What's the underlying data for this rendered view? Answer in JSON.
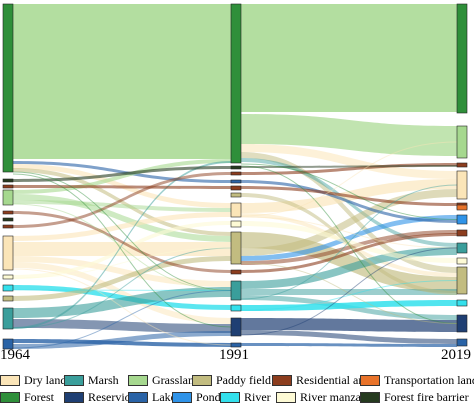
{
  "years": [
    "1964",
    "1991",
    "2019"
  ],
  "legend": [
    {
      "label": "Dry land",
      "color": "#fbe5b8"
    },
    {
      "label": "Marsh",
      "color": "#3a9e9b"
    },
    {
      "label": "Grassland",
      "color": "#a6d88f"
    },
    {
      "label": "Paddy field",
      "color": "#c2bc80"
    },
    {
      "label": "Residential area",
      "color": "#8c3d1e"
    },
    {
      "label": "Transportation land",
      "color": "#e8732a"
    },
    {
      "label": "Forest",
      "color": "#2f8f3a"
    },
    {
      "label": "Reservior",
      "color": "#1f3f73"
    },
    {
      "label": "Lake",
      "color": "#2a63a6"
    },
    {
      "label": "Pond",
      "color": "#2f93e8"
    },
    {
      "label": "River",
      "color": "#33e0ec"
    },
    {
      "label": "River manzanita",
      "color": "#fdfad5"
    },
    {
      "label": "Forest fire barrier",
      "color": "#253a1f"
    }
  ]
}
